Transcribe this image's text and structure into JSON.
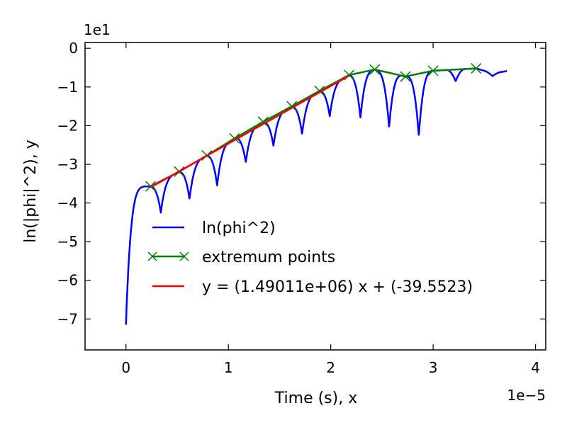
{
  "chart_data": {
    "type": "line",
    "xlabel": "Time (s), x",
    "ylabel": "ln(|phi|^2), y",
    "x_offset_label": "1e−5",
    "y_offset_label": "1e1",
    "xlim": [
      -0.4,
      4.1
    ],
    "ylim": [
      -7.8,
      0.15
    ],
    "x_ticks": [
      0,
      1,
      2,
      3,
      4
    ],
    "x_tick_labels": [
      "0",
      "1",
      "2",
      "3",
      "4"
    ],
    "y_ticks": [
      0,
      -1,
      -2,
      -3,
      -4,
      -5,
      -6,
      -7
    ],
    "y_tick_labels": [
      "0",
      "−1",
      "−2",
      "−3",
      "−4",
      "−5",
      "−6",
      "−7"
    ],
    "grid": false,
    "legend_position": "center-left",
    "series": [
      {
        "name": "ln(phi^2)",
        "color": "#0000ff",
        "marker": "none",
        "x_range": [
          0,
          3.72
        ],
        "dips": [
          0.34,
          0.62,
          0.89,
          1.17,
          1.44,
          1.72,
          1.99,
          2.29,
          2.57,
          2.86,
          3.22,
          3.58
        ],
        "dip_depths": [
          -4.25,
          -3.9,
          -3.55,
          -2.95,
          -2.52,
          -2.22,
          -1.76,
          -1.8,
          -2.04,
          -2.27,
          -0.85,
          -0.72
        ]
      },
      {
        "name": "extremum points",
        "color": "#008000",
        "marker": "x",
        "x": [
          0.24,
          0.52,
          0.79,
          1.06,
          1.34,
          1.62,
          1.89,
          2.18,
          2.43,
          2.73,
          3.0,
          3.42
        ],
        "y": [
          -3.57,
          -3.19,
          -2.77,
          -2.33,
          -1.9,
          -1.5,
          -1.1,
          -0.69,
          -0.55,
          -0.73,
          -0.58,
          -0.52
        ]
      },
      {
        "name": "y = (1.49011e+06) x + (-39.5523)",
        "color": "#ff0000",
        "marker": "none",
        "slope": 1.49011,
        "intercept": -3.95523,
        "x": [
          0.24,
          2.18
        ]
      }
    ]
  }
}
